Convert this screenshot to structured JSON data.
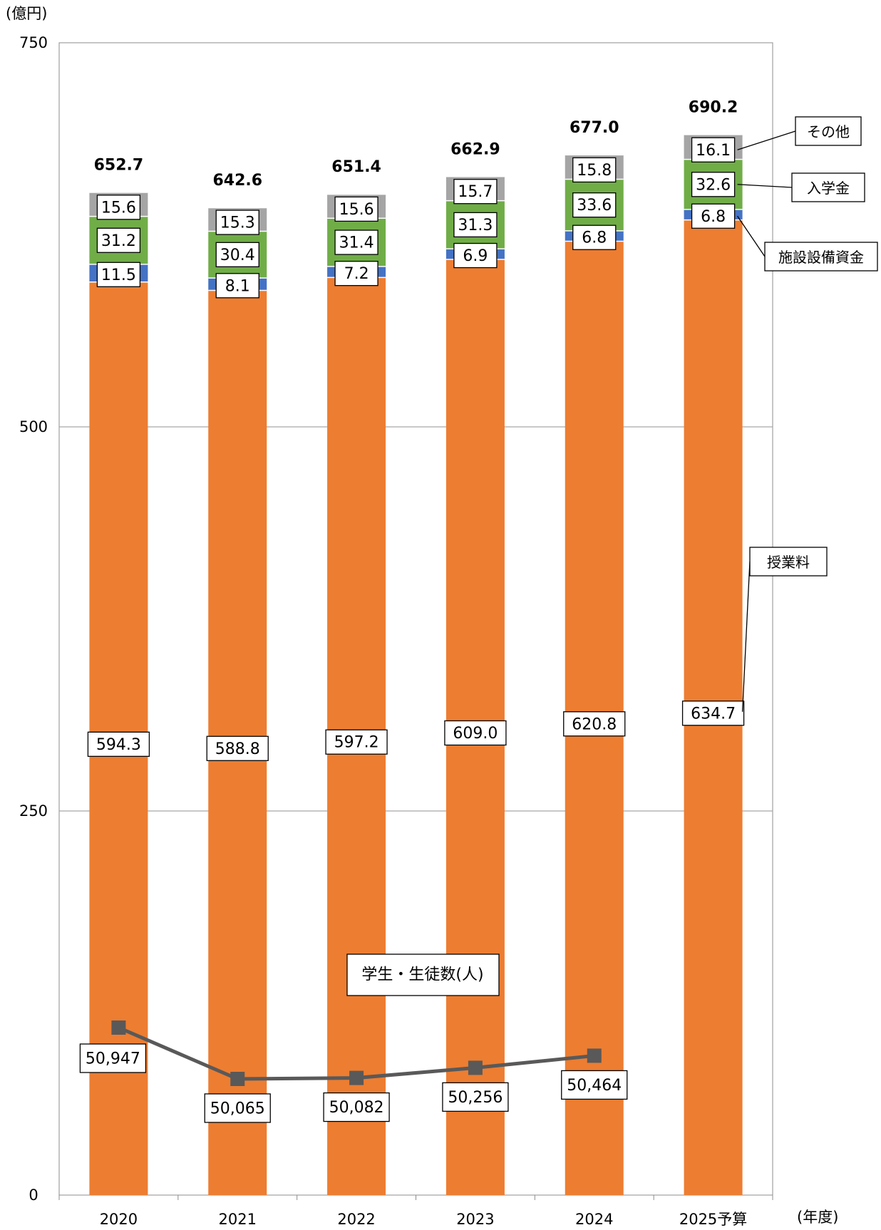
{
  "chart_data": {
    "type": "bar",
    "stacked": true,
    "y_unit_label": "(億円)",
    "x_unit_label": "(年度)",
    "ylim": [
      0,
      750
    ],
    "yticks": [
      0,
      250,
      500,
      750
    ],
    "grid": true,
    "categories": [
      "2020",
      "2021",
      "2022",
      "2023",
      "2024",
      "2025予算"
    ],
    "totals": [
      "652.7",
      "642.6",
      "651.4",
      "662.9",
      "677.0",
      "690.2"
    ],
    "series": [
      {
        "name": "授業料",
        "color": "#ED7D31",
        "values": [
          594.3,
          588.8,
          597.2,
          609.0,
          620.8,
          634.7
        ],
        "labels": [
          "594.3",
          "588.8",
          "597.2",
          "609.0",
          "620.8",
          "634.7"
        ]
      },
      {
        "name": "施設設備資金",
        "color": "#4472C4",
        "values": [
          11.5,
          8.1,
          7.2,
          6.9,
          6.8,
          6.8
        ],
        "labels": [
          "11.5",
          "8.1",
          "7.2",
          "6.9",
          "6.8",
          "6.8"
        ]
      },
      {
        "name": "入学金",
        "color": "#70AD47",
        "values": [
          31.2,
          30.4,
          31.4,
          31.3,
          33.6,
          32.6
        ],
        "labels": [
          "31.2",
          "30.4",
          "31.4",
          "31.3",
          "33.6",
          "32.6"
        ]
      },
      {
        "name": "その他",
        "color": "#A5A5A5",
        "values": [
          15.6,
          15.3,
          15.6,
          15.7,
          15.8,
          16.1
        ],
        "labels": [
          "15.6",
          "15.3",
          "15.6",
          "15.7",
          "15.8",
          "16.1"
        ]
      }
    ],
    "line_series": {
      "name": "学生・生徒数(人)",
      "color": "#595959",
      "values": [
        50947,
        50065,
        50082,
        50256,
        50464
      ],
      "labels": [
        "50,947",
        "50,065",
        "50,082",
        "50,256",
        "50,464"
      ]
    }
  }
}
